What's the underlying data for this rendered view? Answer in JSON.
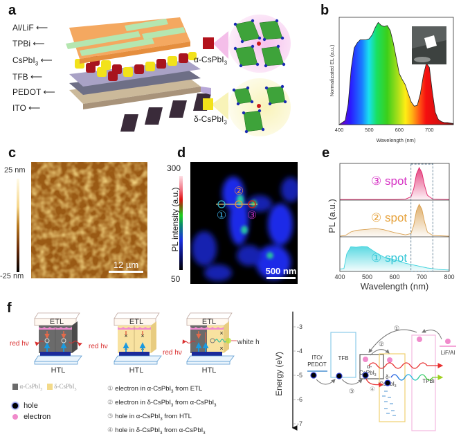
{
  "panels": {
    "a": {
      "label": "a",
      "layers": [
        "Al/LiF",
        "TPBi",
        "CsPbI3",
        "TFB",
        "PEDOT",
        "ITO"
      ],
      "phases": {
        "alpha": {
          "prefix": "α-CsPbI",
          "sub": "3",
          "color": "#b3121c"
        },
        "delta": {
          "prefix": "δ-CsPbI",
          "sub": "3",
          "color": "#f2e21a"
        }
      }
    },
    "b": {
      "label": "b",
      "ylabel": "Normalizated EL (a.u.)",
      "xlabel": "Wavelength (nm)"
    },
    "c": {
      "label": "c",
      "colorbar_max": "25 nm",
      "colorbar_min": "-25 nm",
      "scalebar": "12 µm"
    },
    "d": {
      "label": "d",
      "colorbar_label": "PL intensity (a.u.)",
      "colorbar_max": "300",
      "colorbar_min": "50",
      "scalebar": "500 nm",
      "spots": [
        "①",
        "②",
        "③"
      ]
    },
    "e": {
      "label": "e",
      "ylabel": "PL (a.u.)",
      "xlabel": "Wavelength (nm)",
      "spot_labels": [
        {
          "num": "③",
          "text": "spot",
          "color": "#d633c4"
        },
        {
          "num": "②",
          "text": "spot",
          "color": "#e6a23c"
        },
        {
          "num": "①",
          "text": "spot",
          "color": "#33c6d6"
        }
      ]
    },
    "f": {
      "label": "f",
      "etl": "ETL",
      "htl": "HTL",
      "red_hv": "red hν",
      "white_hv": "white hν",
      "legend_alpha": "α-CsPbI",
      "legend_delta": "δ-CsPbI",
      "sub3": "3",
      "hole": "hole",
      "electron": "electron",
      "processes": [
        {
          "num": "①",
          "parts": [
            "electron in α-CsPbI",
            "3",
            " from ETL"
          ]
        },
        {
          "num": "②",
          "parts": [
            "electron in δ-CsPbI",
            "3",
            " from α-CsPbI",
            "3",
            ""
          ]
        },
        {
          "num": "③",
          "parts": [
            "hole in α-CsPbI",
            "3",
            " from HTL"
          ]
        },
        {
          "num": "④",
          "parts": [
            "hole in δ-CsPbI",
            "3",
            " from α-CsPbI",
            "3",
            ""
          ]
        }
      ],
      "band": {
        "ylabel": "Energy (eV)",
        "ticks": [
          "-3",
          "-4",
          "-5",
          "-6",
          "-7"
        ],
        "ito": [
          "ITO/",
          "PEDOT"
        ],
        "tfb": "TFB",
        "alpha": [
          "α-",
          "CsPbI",
          "3"
        ],
        "delta": [
          "δ-",
          "CsPbI",
          "3"
        ],
        "tpbi": "TPBi",
        "lif": "LiF/Al",
        "steps": [
          "①",
          "②",
          "③",
          "④"
        ]
      }
    }
  },
  "chart_data": [
    {
      "type": "area",
      "title": "b",
      "xlabel": "Wavelength (nm)",
      "ylabel": "Normalizated EL (a.u.)",
      "xlim": [
        400,
        780
      ],
      "ylim": [
        0,
        1.05
      ],
      "xticks": [
        400,
        500,
        600,
        700
      ],
      "x": [
        400,
        420,
        430,
        440,
        450,
        460,
        470,
        480,
        490,
        500,
        510,
        520,
        530,
        540,
        550,
        560,
        570,
        580,
        590,
        600,
        610,
        620,
        630,
        640,
        650,
        660,
        670,
        680,
        690,
        700,
        710,
        720,
        730,
        740,
        750,
        760,
        770,
        780
      ],
      "y": [
        0.0,
        0.04,
        0.2,
        0.55,
        0.75,
        0.8,
        0.83,
        0.83,
        0.83,
        0.84,
        0.88,
        0.95,
        1.0,
        0.97,
        0.96,
        0.97,
        0.92,
        0.8,
        0.65,
        0.5,
        0.44,
        0.39,
        0.3,
        0.22,
        0.18,
        0.19,
        0.3,
        0.48,
        0.6,
        0.56,
        0.32,
        0.12,
        0.05,
        0.03,
        0.02,
        0.02,
        0.015,
        0.01
      ]
    },
    {
      "type": "line",
      "title": "e",
      "xlabel": "Wavelength (nm)",
      "ylabel": "PL (a.u.)",
      "xlim": [
        400,
        800
      ],
      "xticks": [
        400,
        500,
        600,
        700,
        800
      ],
      "highlight_range": [
        660,
        740
      ],
      "series": [
        {
          "name": "③ spot",
          "color": "#e0246a",
          "x": [
            400,
            600,
            640,
            660,
            670,
            680,
            690,
            700,
            710,
            720,
            740,
            800
          ],
          "y": [
            0.02,
            0.02,
            0.03,
            0.1,
            0.35,
            0.8,
            1.0,
            0.85,
            0.45,
            0.15,
            0.03,
            0.02
          ]
        },
        {
          "name": "② spot",
          "color": "#d9a050",
          "x": [
            400,
            420,
            440,
            460,
            500,
            530,
            560,
            600,
            640,
            660,
            670,
            680,
            690,
            700,
            710,
            720,
            740,
            800
          ],
          "y": [
            0.02,
            0.04,
            0.15,
            0.2,
            0.23,
            0.26,
            0.22,
            0.13,
            0.06,
            0.1,
            0.35,
            0.8,
            1.0,
            0.85,
            0.45,
            0.15,
            0.04,
            0.02
          ]
        },
        {
          "name": "① spot",
          "color": "#3fd3dd",
          "x": [
            400,
            415,
            425,
            440,
            460,
            480,
            500,
            520,
            540,
            560,
            600,
            640,
            680,
            720,
            760,
            800
          ],
          "y": [
            0.08,
            0.1,
            0.6,
            0.85,
            0.83,
            0.86,
            0.85,
            0.72,
            0.6,
            0.5,
            0.4,
            0.28,
            0.2,
            0.12,
            0.07,
            0.05
          ]
        }
      ]
    }
  ]
}
